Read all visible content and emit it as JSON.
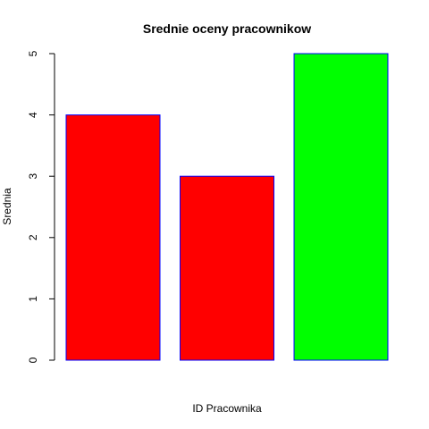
{
  "chart_data": {
    "type": "bar",
    "title": "Srednie oceny pracownikow",
    "xlabel": "ID Pracownika",
    "ylabel": "Srednia",
    "categories": [
      "",
      "",
      ""
    ],
    "values": [
      4,
      3,
      5
    ],
    "bar_colors": [
      "#ff0000",
      "#ff0000",
      "#00ff00"
    ],
    "bar_border_color": "#0000ff",
    "ylim": [
      0,
      5
    ],
    "yticks": [
      "0",
      "1",
      "2",
      "3",
      "4",
      "5"
    ],
    "grid": false,
    "legend": "none"
  }
}
